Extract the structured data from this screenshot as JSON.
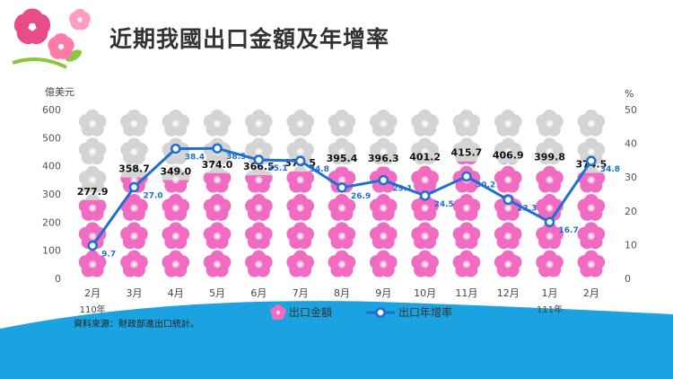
{
  "slide": {
    "title": "近期我國出口金額及年增率",
    "source": "資料來源：財政部進出口統計。"
  },
  "colors": {
    "pink_flower": "#f26bc3",
    "gray_flower": "#d4d4d4",
    "line": "#1e6fd0",
    "line_label": "#1e6fd0",
    "bar_label": "#111111",
    "bottom_wave": "#1aa3e0",
    "deco_flower": "#e84d8a"
  },
  "chart_data": {
    "type": "bar",
    "categories": [
      "2月",
      "3月",
      "4月",
      "5月",
      "6月",
      "7月",
      "8月",
      "9月",
      "10月",
      "11月",
      "12月",
      "1月",
      "2月"
    ],
    "year_labels": [
      {
        "index": 0,
        "label": "110年"
      },
      {
        "index": 11,
        "label": "111年"
      }
    ],
    "ylabel_left": "億美元",
    "ylabel_right": "%",
    "ylim_left": [
      0,
      600
    ],
    "yticks_left": [
      "0",
      "100",
      "200",
      "300",
      "400",
      "500",
      "600"
    ],
    "ylim_right": [
      0,
      50
    ],
    "yticks_right": [
      "0",
      "10",
      "20",
      "30",
      "40",
      "50"
    ],
    "series": [
      {
        "name": "出口金額",
        "type": "bar",
        "axis": "left",
        "values": [
          277.9,
          358.7,
          349.0,
          374.0,
          366.5,
          379.5,
          395.4,
          396.3,
          401.2,
          415.7,
          406.9,
          399.8,
          374.5
        ],
        "labels": [
          "277.9",
          "358.7",
          "349.0",
          "374.0",
          "366.5",
          "379.5",
          "395.4",
          "396.3",
          "401.2",
          "415.7",
          "406.9",
          "399.8",
          "374.5"
        ]
      },
      {
        "name": "出口年增率",
        "type": "line",
        "axis": "right",
        "values": [
          9.7,
          27.0,
          38.4,
          38.5,
          35.1,
          34.8,
          26.9,
          29.1,
          24.5,
          30.2,
          23.3,
          16.7,
          34.8
        ],
        "labels": [
          "9.7",
          "27.0",
          "38.4",
          "38.5",
          "35.1",
          "34.8",
          "26.9",
          "29.1",
          "24.5",
          "30.2",
          "23.3",
          "16.7",
          "34.8"
        ]
      }
    ],
    "legend_position": "bottom",
    "grid": false
  }
}
